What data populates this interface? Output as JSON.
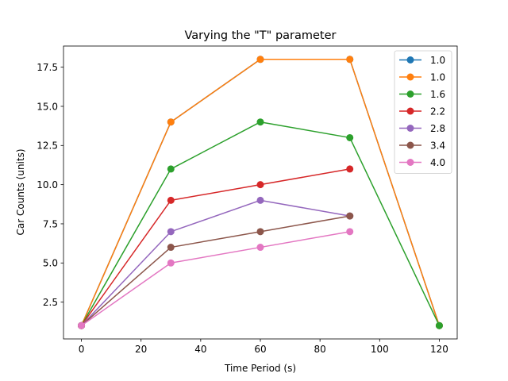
{
  "chart_data": {
    "type": "line",
    "title": "Varying the \"T\" parameter",
    "xlabel": "Time Period (s)",
    "ylabel": "Car Counts (units)",
    "xlim": [
      -6,
      126
    ],
    "ylim": [
      0.15,
      18.85
    ],
    "xticks": [
      0,
      20,
      40,
      60,
      80,
      100,
      120
    ],
    "yticks": [
      2.5,
      5.0,
      7.5,
      10.0,
      12.5,
      15.0,
      17.5
    ],
    "ytick_labels": [
      "2.5",
      "5.0",
      "7.5",
      "10.0",
      "12.5",
      "15.0",
      "17.5"
    ],
    "grid": false,
    "legend_position": "top-right",
    "series": [
      {
        "name": "1.0",
        "color": "#1f77b4",
        "x": [
          0,
          30,
          60,
          90,
          120
        ],
        "y": [
          1,
          14,
          18,
          18,
          1
        ]
      },
      {
        "name": "1.0",
        "color": "#ff7f0e",
        "x": [
          0,
          30,
          60,
          90,
          120
        ],
        "y": [
          1,
          14,
          18,
          18,
          1
        ]
      },
      {
        "name": "1.6",
        "color": "#2ca02c",
        "x": [
          0,
          30,
          60,
          90,
          120
        ],
        "y": [
          1,
          11,
          14,
          13,
          1
        ]
      },
      {
        "name": "2.2",
        "color": "#d62728",
        "x": [
          0,
          30,
          60,
          90
        ],
        "y": [
          1,
          9,
          10,
          11
        ]
      },
      {
        "name": "2.8",
        "color": "#9467bd",
        "x": [
          0,
          30,
          60,
          90
        ],
        "y": [
          1,
          7,
          9,
          8
        ]
      },
      {
        "name": "3.4",
        "color": "#8c564b",
        "x": [
          0,
          30,
          60,
          90
        ],
        "y": [
          1,
          6,
          7,
          8
        ]
      },
      {
        "name": "4.0",
        "color": "#e377c2",
        "x": [
          0,
          30,
          60,
          90
        ],
        "y": [
          1,
          5,
          6,
          7
        ]
      }
    ]
  }
}
